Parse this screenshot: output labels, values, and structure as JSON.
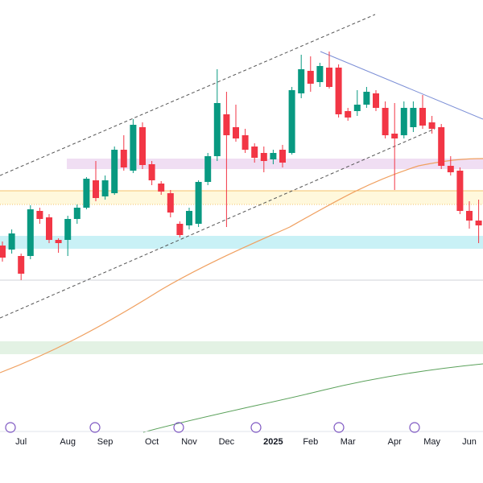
{
  "chart_data": {
    "type": "candlestick",
    "categories": [
      null,
      null,
      "Jul",
      null,
      null,
      null,
      null,
      "Aug",
      null,
      null,
      null,
      "Sep",
      null,
      null,
      null,
      null,
      "Oct",
      null,
      null,
      null,
      "Nov",
      null,
      null,
      null,
      "Dec",
      null,
      null,
      null,
      null,
      "2025",
      null,
      null,
      null,
      "Feb",
      null,
      null,
      null,
      "Mar",
      null,
      null,
      null,
      null,
      "Apr",
      null,
      null,
      null,
      "May",
      null,
      null,
      null,
      "Jun",
      null
    ],
    "open": [
      295,
      290,
      282,
      282,
      338,
      330,
      302,
      302,
      328,
      342,
      376,
      356,
      360,
      414,
      388,
      442,
      396,
      372,
      360,
      322,
      320,
      322,
      374,
      406,
      458,
      442,
      432,
      418,
      410,
      402,
      414,
      410,
      484,
      512,
      498,
      516,
      516,
      462,
      462,
      470,
      484,
      466,
      434,
      432,
      442,
      466,
      448,
      442,
      394,
      388,
      338,
      326
    ],
    "high": [
      300,
      315,
      285,
      345,
      342,
      334,
      304,
      332,
      346,
      380,
      400,
      382,
      418,
      432,
      452,
      448,
      400,
      375,
      364,
      325,
      342,
      376,
      410,
      514,
      486,
      470,
      440,
      422,
      418,
      414,
      420,
      492,
      532,
      530,
      522,
      536,
      520,
      466,
      488,
      492,
      488,
      474,
      472,
      474,
      474,
      482,
      456,
      446,
      406,
      392,
      350,
      352
    ],
    "low": [
      275,
      285,
      252,
      278,
      322,
      298,
      286,
      282,
      322,
      340,
      350,
      352,
      358,
      388,
      385,
      390,
      370,
      358,
      330,
      305,
      315,
      318,
      370,
      400,
      318,
      424,
      410,
      398,
      386,
      396,
      392,
      408,
      478,
      486,
      492,
      490,
      454,
      450,
      456,
      466,
      462,
      428,
      364,
      428,
      436,
      440,
      434,
      390,
      382,
      334,
      316,
      298
    ],
    "close": [
      280,
      310,
      260,
      340,
      328,
      302,
      298,
      328,
      342,
      378,
      354,
      376,
      414,
      392,
      445,
      395,
      376,
      362,
      336,
      308,
      338,
      374,
      406,
      472,
      432,
      428,
      414,
      404,
      400,
      410,
      398,
      488,
      514,
      496,
      518,
      492,
      458,
      454,
      470,
      486,
      466,
      432,
      428,
      466,
      466,
      444,
      440,
      394,
      386,
      338,
      326,
      320
    ],
    "up_color": "#089981",
    "down_color": "#f23645",
    "ylim": [
      0,
      600
    ]
  }
}
